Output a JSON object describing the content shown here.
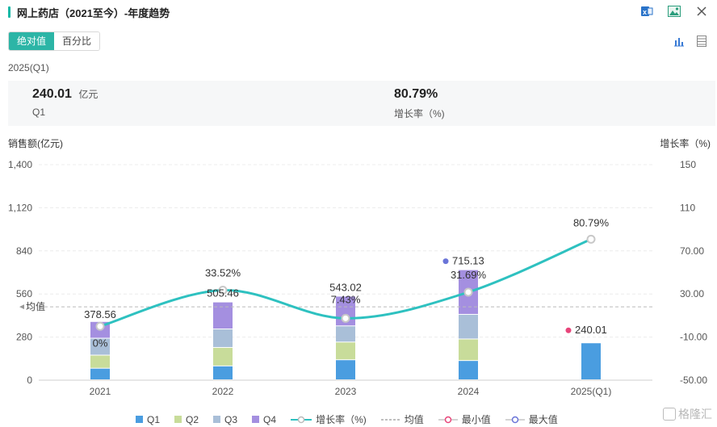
{
  "header": {
    "title": "网上药店（2021至今）-年度趋势",
    "icons": [
      "excel-export-icon",
      "image-export-icon",
      "close-icon"
    ]
  },
  "tabs": [
    {
      "label": "绝对值",
      "active": true
    },
    {
      "label": "百分比",
      "active": false
    }
  ],
  "chart_toolbar": {
    "icons": [
      "bar-chart-icon",
      "table-icon"
    ]
  },
  "summary": {
    "period": "2025(Q1)",
    "left": {
      "value": "240.01",
      "unit": "亿元",
      "label": "Q1"
    },
    "right": {
      "value": "80.79%",
      "label": "增长率（%)"
    }
  },
  "colors": {
    "Q1": "#4a9de0",
    "Q2": "#c8dc9a",
    "Q3": "#a9bfd8",
    "Q4": "#a48fe0",
    "growth": "#2ec1c0",
    "min": "#e8457a",
    "max": "#6a74d8",
    "accent": "#2cb5a6"
  },
  "chart_data": {
    "type": "bar",
    "categories": [
      "2021",
      "2022",
      "2023",
      "2024",
      "2025(Q1)"
    ],
    "series": [
      {
        "name": "Q1",
        "values": [
          75,
          90,
          130,
          125,
          240.01
        ]
      },
      {
        "name": "Q2",
        "values": [
          85,
          120,
          115,
          140,
          null
        ]
      },
      {
        "name": "Q3",
        "values": [
          110,
          120,
          105,
          160,
          null
        ]
      },
      {
        "name": "Q4",
        "values": [
          108.56,
          175.46,
          193.02,
          290.13,
          null
        ]
      }
    ],
    "totals": [
      378.56,
      505.46,
      543.02,
      715.13,
      240.01
    ],
    "growth_rate": [
      0,
      33.52,
      7.43,
      31.69,
      80.79
    ],
    "growth_labels": [
      "0%",
      "33.52%",
      "7.43%",
      "31.69%",
      "80.79%"
    ],
    "total_labels": [
      "378.56",
      "505.46",
      "543.02",
      "715.13",
      "240.01"
    ],
    "mean_label": "均值",
    "min": {
      "category": "2025(Q1)",
      "label": "240.01"
    },
    "max": {
      "category": "2024",
      "label": "715.13"
    },
    "ylabel_left": "销售额(亿元)",
    "ylabel_right": "增长率（%)",
    "ylim_left": [
      0,
      1400
    ],
    "yticks_left": [
      "0",
      "280",
      "560",
      "840",
      "1,120",
      "1,400"
    ],
    "ylim_right": [
      -50,
      150
    ],
    "yticks_right": [
      "-50.00",
      "-10.00",
      "30.00",
      "70.00",
      "110",
      "150"
    ],
    "grid": true
  },
  "legend": [
    {
      "name": "Q1",
      "kind": "square",
      "color": "#4a9de0"
    },
    {
      "name": "Q2",
      "kind": "square",
      "color": "#c8dc9a"
    },
    {
      "name": "Q3",
      "kind": "square",
      "color": "#a9bfd8"
    },
    {
      "name": "Q4",
      "kind": "square",
      "color": "#a48fe0"
    },
    {
      "name": "增长率（%)",
      "kind": "line",
      "color": "#2ec1c0"
    },
    {
      "name": "均值",
      "kind": "dash",
      "color": "#999999"
    },
    {
      "name": "最小值",
      "kind": "circle",
      "color": "#e8457a"
    },
    {
      "name": "最大值",
      "kind": "circle",
      "color": "#6a74d8"
    }
  ],
  "watermark": "格隆汇"
}
